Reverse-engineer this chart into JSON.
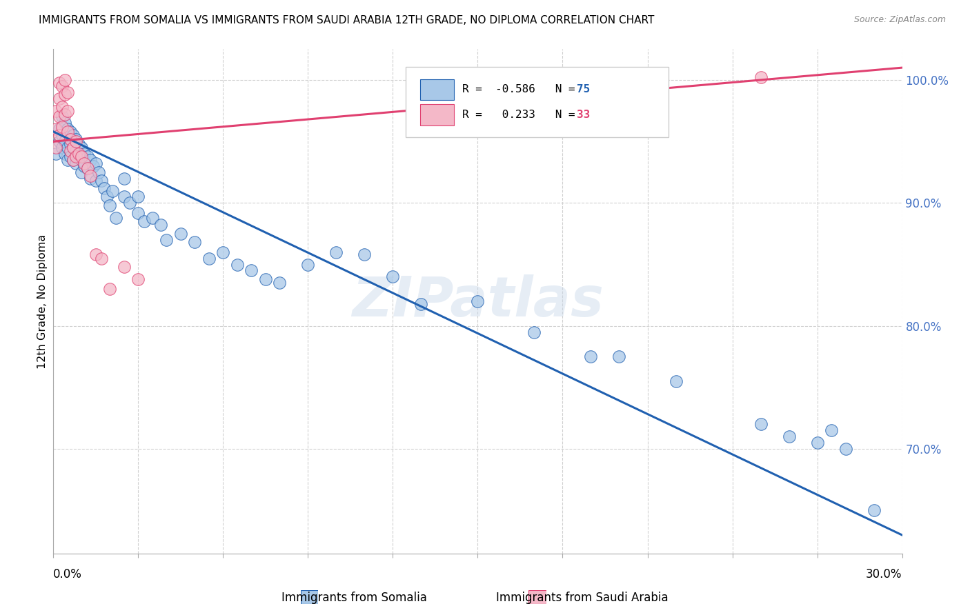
{
  "title": "IMMIGRANTS FROM SOMALIA VS IMMIGRANTS FROM SAUDI ARABIA 12TH GRADE, NO DIPLOMA CORRELATION CHART",
  "source": "Source: ZipAtlas.com",
  "ylabel": "12th Grade, No Diploma",
  "ylabel_right_labels": [
    "100.0%",
    "90.0%",
    "80.0%",
    "70.0%"
  ],
  "ylabel_right_values": [
    1.0,
    0.9,
    0.8,
    0.7
  ],
  "xlim": [
    0.0,
    0.3
  ],
  "ylim": [
    0.615,
    1.025
  ],
  "somalia_color": "#a8c8e8",
  "saudi_color": "#f4b8c8",
  "somalia_line_color": "#2060b0",
  "saudi_line_color": "#e04070",
  "watermark": "ZIPatlas",
  "somalia_scatter_x": [
    0.001,
    0.002,
    0.002,
    0.003,
    0.003,
    0.003,
    0.004,
    0.004,
    0.004,
    0.005,
    0.005,
    0.005,
    0.006,
    0.006,
    0.006,
    0.007,
    0.007,
    0.007,
    0.008,
    0.008,
    0.008,
    0.009,
    0.009,
    0.01,
    0.01,
    0.01,
    0.011,
    0.011,
    0.012,
    0.012,
    0.013,
    0.013,
    0.014,
    0.015,
    0.015,
    0.016,
    0.017,
    0.018,
    0.019,
    0.02,
    0.021,
    0.022,
    0.025,
    0.025,
    0.027,
    0.03,
    0.03,
    0.032,
    0.035,
    0.038,
    0.04,
    0.045,
    0.05,
    0.055,
    0.06,
    0.065,
    0.07,
    0.075,
    0.08,
    0.09,
    0.1,
    0.11,
    0.12,
    0.13,
    0.15,
    0.17,
    0.19,
    0.2,
    0.22,
    0.25,
    0.26,
    0.27,
    0.275,
    0.28,
    0.29
  ],
  "somalia_scatter_y": [
    0.94,
    0.96,
    0.95,
    0.97,
    0.955,
    0.945,
    0.965,
    0.95,
    0.94,
    0.96,
    0.945,
    0.935,
    0.958,
    0.948,
    0.938,
    0.955,
    0.945,
    0.935,
    0.952,
    0.942,
    0.932,
    0.948,
    0.938,
    0.945,
    0.935,
    0.925,
    0.94,
    0.93,
    0.938,
    0.928,
    0.935,
    0.92,
    0.93,
    0.932,
    0.918,
    0.925,
    0.918,
    0.912,
    0.905,
    0.898,
    0.91,
    0.888,
    0.92,
    0.905,
    0.9,
    0.905,
    0.892,
    0.885,
    0.888,
    0.882,
    0.87,
    0.875,
    0.868,
    0.855,
    0.86,
    0.85,
    0.845,
    0.838,
    0.835,
    0.85,
    0.86,
    0.858,
    0.84,
    0.818,
    0.82,
    0.795,
    0.775,
    0.775,
    0.755,
    0.72,
    0.71,
    0.705,
    0.715,
    0.7,
    0.65
  ],
  "saudi_scatter_x": [
    0.001,
    0.001,
    0.001,
    0.002,
    0.002,
    0.002,
    0.002,
    0.003,
    0.003,
    0.003,
    0.004,
    0.004,
    0.004,
    0.005,
    0.005,
    0.005,
    0.006,
    0.006,
    0.007,
    0.007,
    0.008,
    0.008,
    0.009,
    0.01,
    0.011,
    0.012,
    0.013,
    0.015,
    0.017,
    0.02,
    0.025,
    0.03,
    0.25
  ],
  "saudi_scatter_y": [
    0.975,
    0.96,
    0.945,
    0.998,
    0.985,
    0.97,
    0.955,
    0.995,
    0.978,
    0.962,
    1.0,
    0.988,
    0.972,
    0.99,
    0.975,
    0.958,
    0.952,
    0.942,
    0.945,
    0.935,
    0.95,
    0.938,
    0.94,
    0.938,
    0.932,
    0.928,
    0.922,
    0.858,
    0.855,
    0.83,
    0.848,
    0.838,
    1.002
  ],
  "somalia_trend_x": [
    0.0,
    0.3
  ],
  "somalia_trend_y": [
    0.958,
    0.63
  ],
  "saudi_trend_x": [
    0.0,
    0.3
  ],
  "saudi_trend_y": [
    0.95,
    1.01
  ],
  "grid_color": "#d0d0d0",
  "background_color": "#ffffff"
}
